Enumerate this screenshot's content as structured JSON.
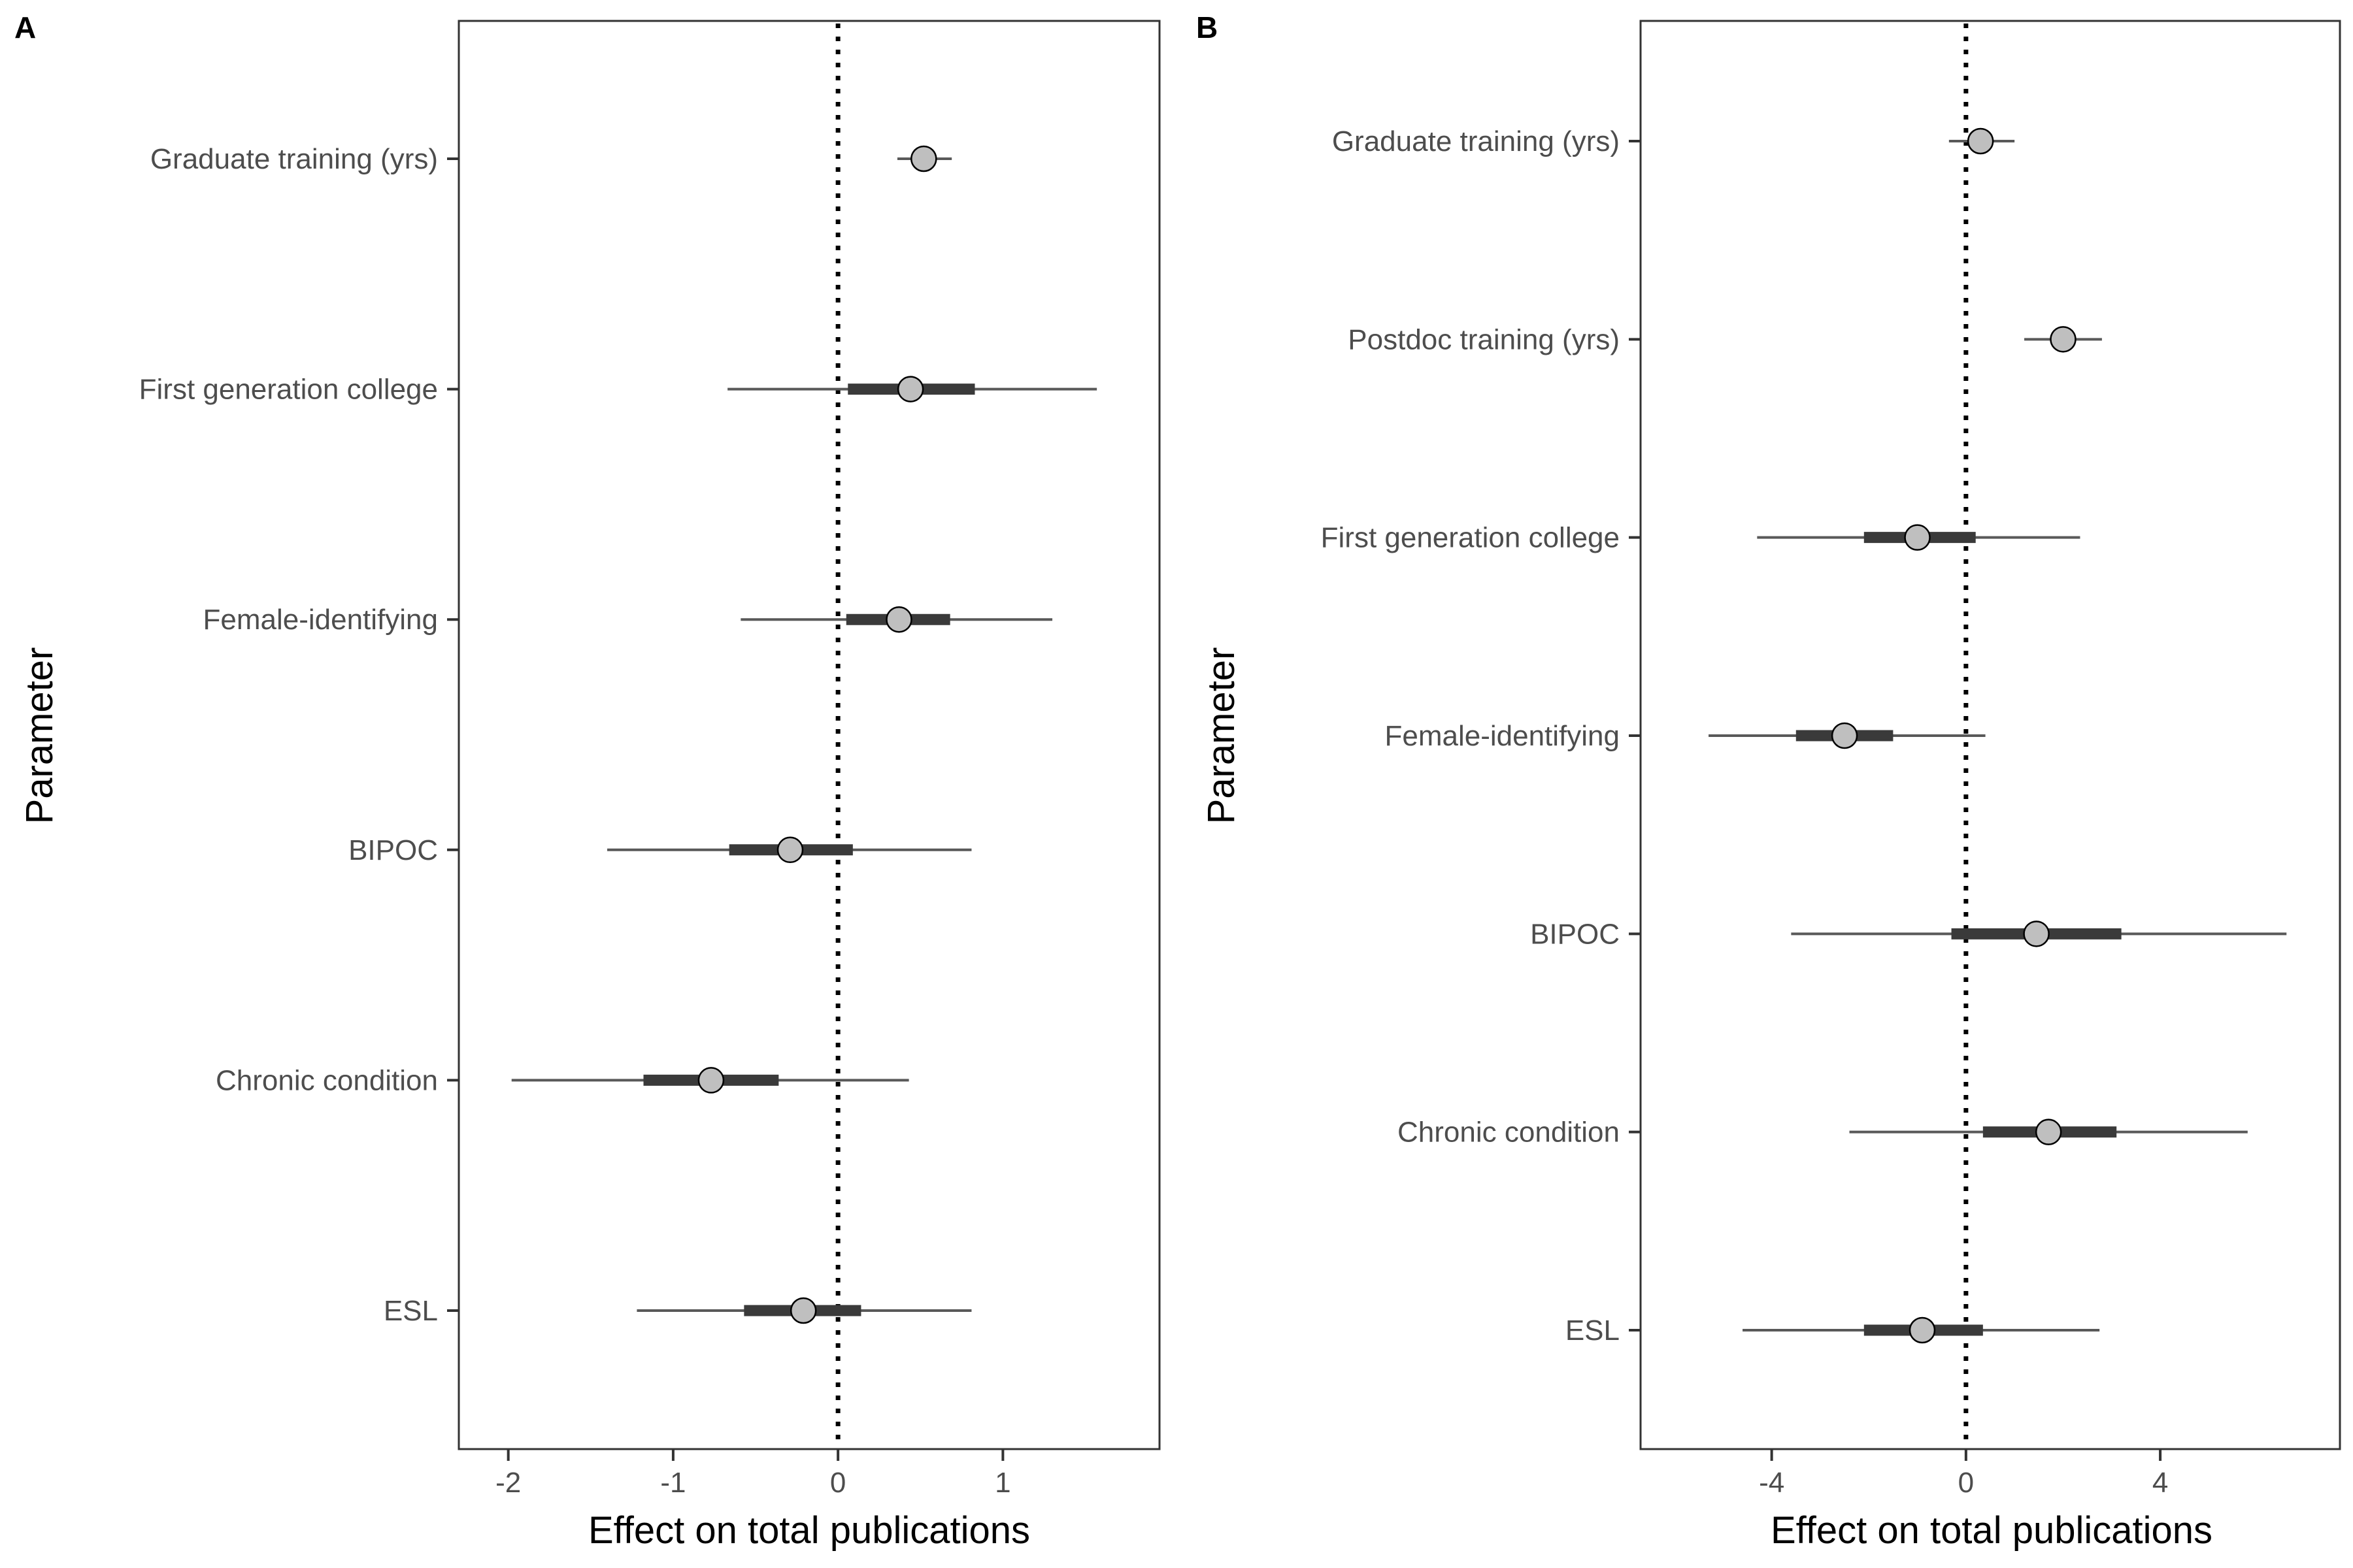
{
  "chart_data": [
    {
      "panel": "A",
      "type": "forest",
      "xlabel": "Effect on total publications",
      "ylabel": "Parameter",
      "xlim": [
        -2.3,
        1.95
      ],
      "xticks": [
        -2,
        -1,
        0,
        1
      ],
      "xtick_labels": [
        "-2",
        "-1",
        "0",
        "1"
      ],
      "reference_line": 0,
      "grid": false,
      "categories": [
        "Graduate training (yrs)",
        "First generation college",
        "Female-identifying",
        "BIPOC",
        "Chronic condition",
        "ESL"
      ],
      "estimates": [
        0.52,
        0.44,
        0.37,
        -0.29,
        -0.77,
        -0.21
      ],
      "inner_intervals": [
        [
          0.49,
          0.56
        ],
        [
          0.06,
          0.83
        ],
        [
          0.05,
          0.68
        ],
        [
          -0.66,
          0.09
        ],
        [
          -1.18,
          -0.36
        ],
        [
          -0.57,
          0.14
        ]
      ],
      "outer_intervals": [
        [
          0.36,
          0.69
        ],
        [
          -0.67,
          1.57
        ],
        [
          -0.59,
          1.3
        ],
        [
          -1.4,
          0.81
        ],
        [
          -1.98,
          0.43
        ],
        [
          -1.22,
          0.81
        ]
      ]
    },
    {
      "panel": "B",
      "type": "forest",
      "xlabel": "Effect on total publications",
      "ylabel": "Parameter",
      "xlim": [
        -6.7,
        7.7
      ],
      "xticks": [
        -4,
        0,
        4
      ],
      "xtick_labels": [
        "-4",
        "0",
        "4"
      ],
      "reference_line": 0,
      "grid": false,
      "categories": [
        "Graduate training (yrs)",
        "Postdoc training (yrs)",
        "First generation college",
        "Female-identifying",
        "BIPOC",
        "Chronic condition",
        "ESL"
      ],
      "estimates": [
        0.3,
        2.0,
        -1.0,
        -2.5,
        1.45,
        1.7,
        -0.9
      ],
      "inner_intervals": [
        [
          0.1,
          0.5
        ],
        [
          1.8,
          2.2
        ],
        [
          -2.1,
          0.2
        ],
        [
          -3.5,
          -1.5
        ],
        [
          -0.3,
          3.2
        ],
        [
          0.35,
          3.1
        ],
        [
          -2.1,
          0.35
        ]
      ],
      "outer_intervals": [
        [
          -0.35,
          1.0
        ],
        [
          1.2,
          2.8
        ],
        [
          -4.3,
          2.35
        ],
        [
          -5.3,
          0.4
        ],
        [
          -3.6,
          6.6
        ],
        [
          -2.4,
          5.8
        ],
        [
          -4.6,
          2.75
        ]
      ]
    }
  ]
}
